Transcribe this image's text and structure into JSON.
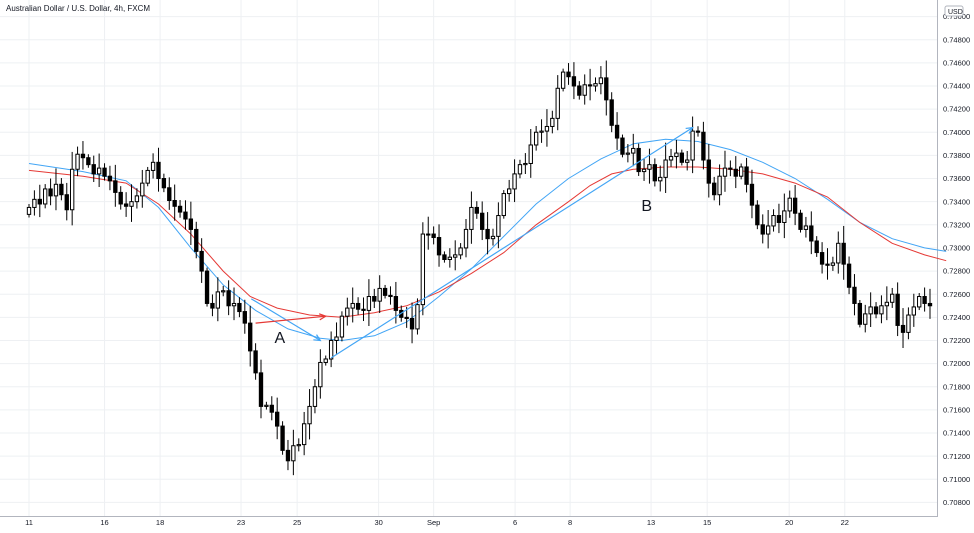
{
  "chart_data": {
    "type": "candlestick",
    "title": "Australian Dollar / U.S. Dollar, 4h, FXCM",
    "currency": "USD",
    "y_range": [
      0.707,
      0.751
    ],
    "y_ticks": [
      "0.75000",
      "0.74800",
      "0.74600",
      "0.74400",
      "0.74200",
      "0.74000",
      "0.73800",
      "0.73600",
      "0.73400",
      "0.73200",
      "0.73000",
      "0.72800",
      "0.72600",
      "0.72400",
      "0.72200",
      "0.72000",
      "0.71800",
      "0.71600",
      "0.71400",
      "0.71200",
      "0.71000",
      "0.70800"
    ],
    "x_ticks": [
      {
        "label": "11",
        "t": 0.0
      },
      {
        "label": "16",
        "t": 14.0
      },
      {
        "label": "18",
        "t": 24.3
      },
      {
        "label": "23",
        "t": 39.3
      },
      {
        "label": "25",
        "t": 49.7
      },
      {
        "label": "30",
        "t": 64.8
      },
      {
        "label": "Sep",
        "t": 75.0
      },
      {
        "label": "6",
        "t": 90.1
      },
      {
        "label": "8",
        "t": 100.3
      },
      {
        "label": "13",
        "t": 115.3
      },
      {
        "label": "15",
        "t": 125.7
      },
      {
        "label": "20",
        "t": 140.9
      },
      {
        "label": "22",
        "t": 151.2
      }
    ],
    "colors": {
      "candle": "#000000",
      "ma_fast": "#e53935",
      "ma_slow": "#42a5f5",
      "arrow_blue": "#42a5f5",
      "arrow_red": "#e53935",
      "grid": "#eef0f3",
      "axis": "#b2b5be"
    },
    "close": [
      0.7335,
      0.7342,
      0.7338,
      0.7351,
      0.7345,
      0.7355,
      0.7346,
      0.7333,
      0.7368,
      0.7381,
      0.7378,
      0.7372,
      0.7364,
      0.7369,
      0.7362,
      0.7358,
      0.7348,
      0.7338,
      0.7336,
      0.734,
      0.7345,
      0.7356,
      0.7367,
      0.7374,
      0.736,
      0.7352,
      0.7341,
      0.7336,
      0.7331,
      0.7325,
      0.7316,
      0.7297,
      0.728,
      0.7252,
      0.7248,
      0.7262,
      0.7263,
      0.725,
      0.7252,
      0.7245,
      0.7235,
      0.7211,
      0.7192,
      0.7163,
      0.7164,
      0.7158,
      0.7146,
      0.7125,
      0.7116,
      0.7129,
      0.713,
      0.7148,
      0.7163,
      0.718,
      0.7201,
      0.7204,
      0.722,
      0.7223,
      0.7241,
      0.7248,
      0.7252,
      0.7247,
      0.7246,
      0.7258,
      0.7254,
      0.7265,
      0.7259,
      0.7258,
      0.7246,
      0.724,
      0.7239,
      0.723,
      0.7251,
      0.7312,
      0.7312,
      0.7309,
      0.7294,
      0.729,
      0.7292,
      0.7294,
      0.73,
      0.7316,
      0.7335,
      0.733,
      0.7316,
      0.7308,
      0.731,
      0.7328,
      0.7347,
      0.7351,
      0.7364,
      0.7372,
      0.7373,
      0.7389,
      0.74,
      0.7401,
      0.7405,
      0.7412,
      0.7438,
      0.7452,
      0.7448,
      0.744,
      0.7432,
      0.7441,
      0.744,
      0.7442,
      0.7447,
      0.7428,
      0.7406,
      0.7395,
      0.7381,
      0.7382,
      0.7386,
      0.7366,
      0.7368,
      0.7372,
      0.7358,
      0.7361,
      0.7376,
      0.7379,
      0.7382,
      0.7374,
      0.7376,
      0.7401,
      0.74,
      0.7376,
      0.7356,
      0.7346,
      0.7362,
      0.7369,
      0.7368,
      0.7362,
      0.737,
      0.7355,
      0.7337,
      0.732,
      0.7312,
      0.7319,
      0.7328,
      0.7322,
      0.7332,
      0.7343,
      0.733,
      0.7316,
      0.7319,
      0.7306,
      0.7296,
      0.7286,
      0.7285,
      0.7287,
      0.7304,
      0.7286,
      0.7266,
      0.7252,
      0.7234,
      0.7243,
      0.7249,
      0.7243,
      0.725,
      0.7253,
      0.726,
      0.7233,
      0.7227,
      0.7242,
      0.7249,
      0.7258,
      0.7252,
      0.725
    ],
    "ma_fast": [
      [
        0,
        0.7367
      ],
      [
        10,
        0.7362
      ],
      [
        18,
        0.7356
      ],
      [
        24,
        0.7338
      ],
      [
        30,
        0.7312
      ],
      [
        36,
        0.728
      ],
      [
        41,
        0.7258
      ],
      [
        46,
        0.7248
      ],
      [
        52,
        0.7242
      ],
      [
        58,
        0.724
      ],
      [
        64,
        0.7244
      ],
      [
        70,
        0.725
      ],
      [
        76,
        0.7262
      ],
      [
        82,
        0.7278
      ],
      [
        88,
        0.7296
      ],
      [
        94,
        0.732
      ],
      [
        100,
        0.734
      ],
      [
        104,
        0.7354
      ],
      [
        108,
        0.7364
      ],
      [
        112,
        0.7368
      ],
      [
        118,
        0.737
      ],
      [
        124,
        0.737
      ],
      [
        130,
        0.7368
      ],
      [
        136,
        0.7364
      ],
      [
        142,
        0.7356
      ],
      [
        148,
        0.7344
      ],
      [
        154,
        0.7322
      ],
      [
        160,
        0.7304
      ],
      [
        166,
        0.7294
      ],
      [
        170,
        0.7289
      ]
    ],
    "ma_slow": [
      [
        0,
        0.7373
      ],
      [
        10,
        0.7366
      ],
      [
        18,
        0.7358
      ],
      [
        24,
        0.7335
      ],
      [
        30,
        0.73
      ],
      [
        36,
        0.7268
      ],
      [
        42,
        0.7246
      ],
      [
        48,
        0.723
      ],
      [
        54,
        0.7222
      ],
      [
        58,
        0.722
      ],
      [
        64,
        0.7224
      ],
      [
        70,
        0.7236
      ],
      [
        76,
        0.7258
      ],
      [
        82,
        0.7282
      ],
      [
        88,
        0.731
      ],
      [
        94,
        0.7338
      ],
      [
        100,
        0.736
      ],
      [
        106,
        0.7377
      ],
      [
        112,
        0.739
      ],
      [
        118,
        0.7394
      ],
      [
        124,
        0.7392
      ],
      [
        130,
        0.7385
      ],
      [
        136,
        0.7374
      ],
      [
        142,
        0.736
      ],
      [
        148,
        0.7342
      ],
      [
        154,
        0.7322
      ],
      [
        160,
        0.7308
      ],
      [
        166,
        0.73
      ],
      [
        170,
        0.7297
      ]
    ],
    "annotations": [
      {
        "label": "A",
        "t": 46.5,
        "y": 0.7218
      },
      {
        "label": "B",
        "t": 114.5,
        "y": 0.7332
      }
    ],
    "arrows": [
      {
        "color": "blue",
        "from": [
          41.2,
          0.7256
        ],
        "to": [
          54.0,
          0.722
        ]
      },
      {
        "color": "red",
        "from": [
          42.0,
          0.7235
        ],
        "to": [
          55.0,
          0.7241
        ]
      },
      {
        "color": "blue",
        "from": [
          56.0,
          0.7205
        ],
        "to": [
          123.0,
          0.7404
        ]
      }
    ]
  }
}
